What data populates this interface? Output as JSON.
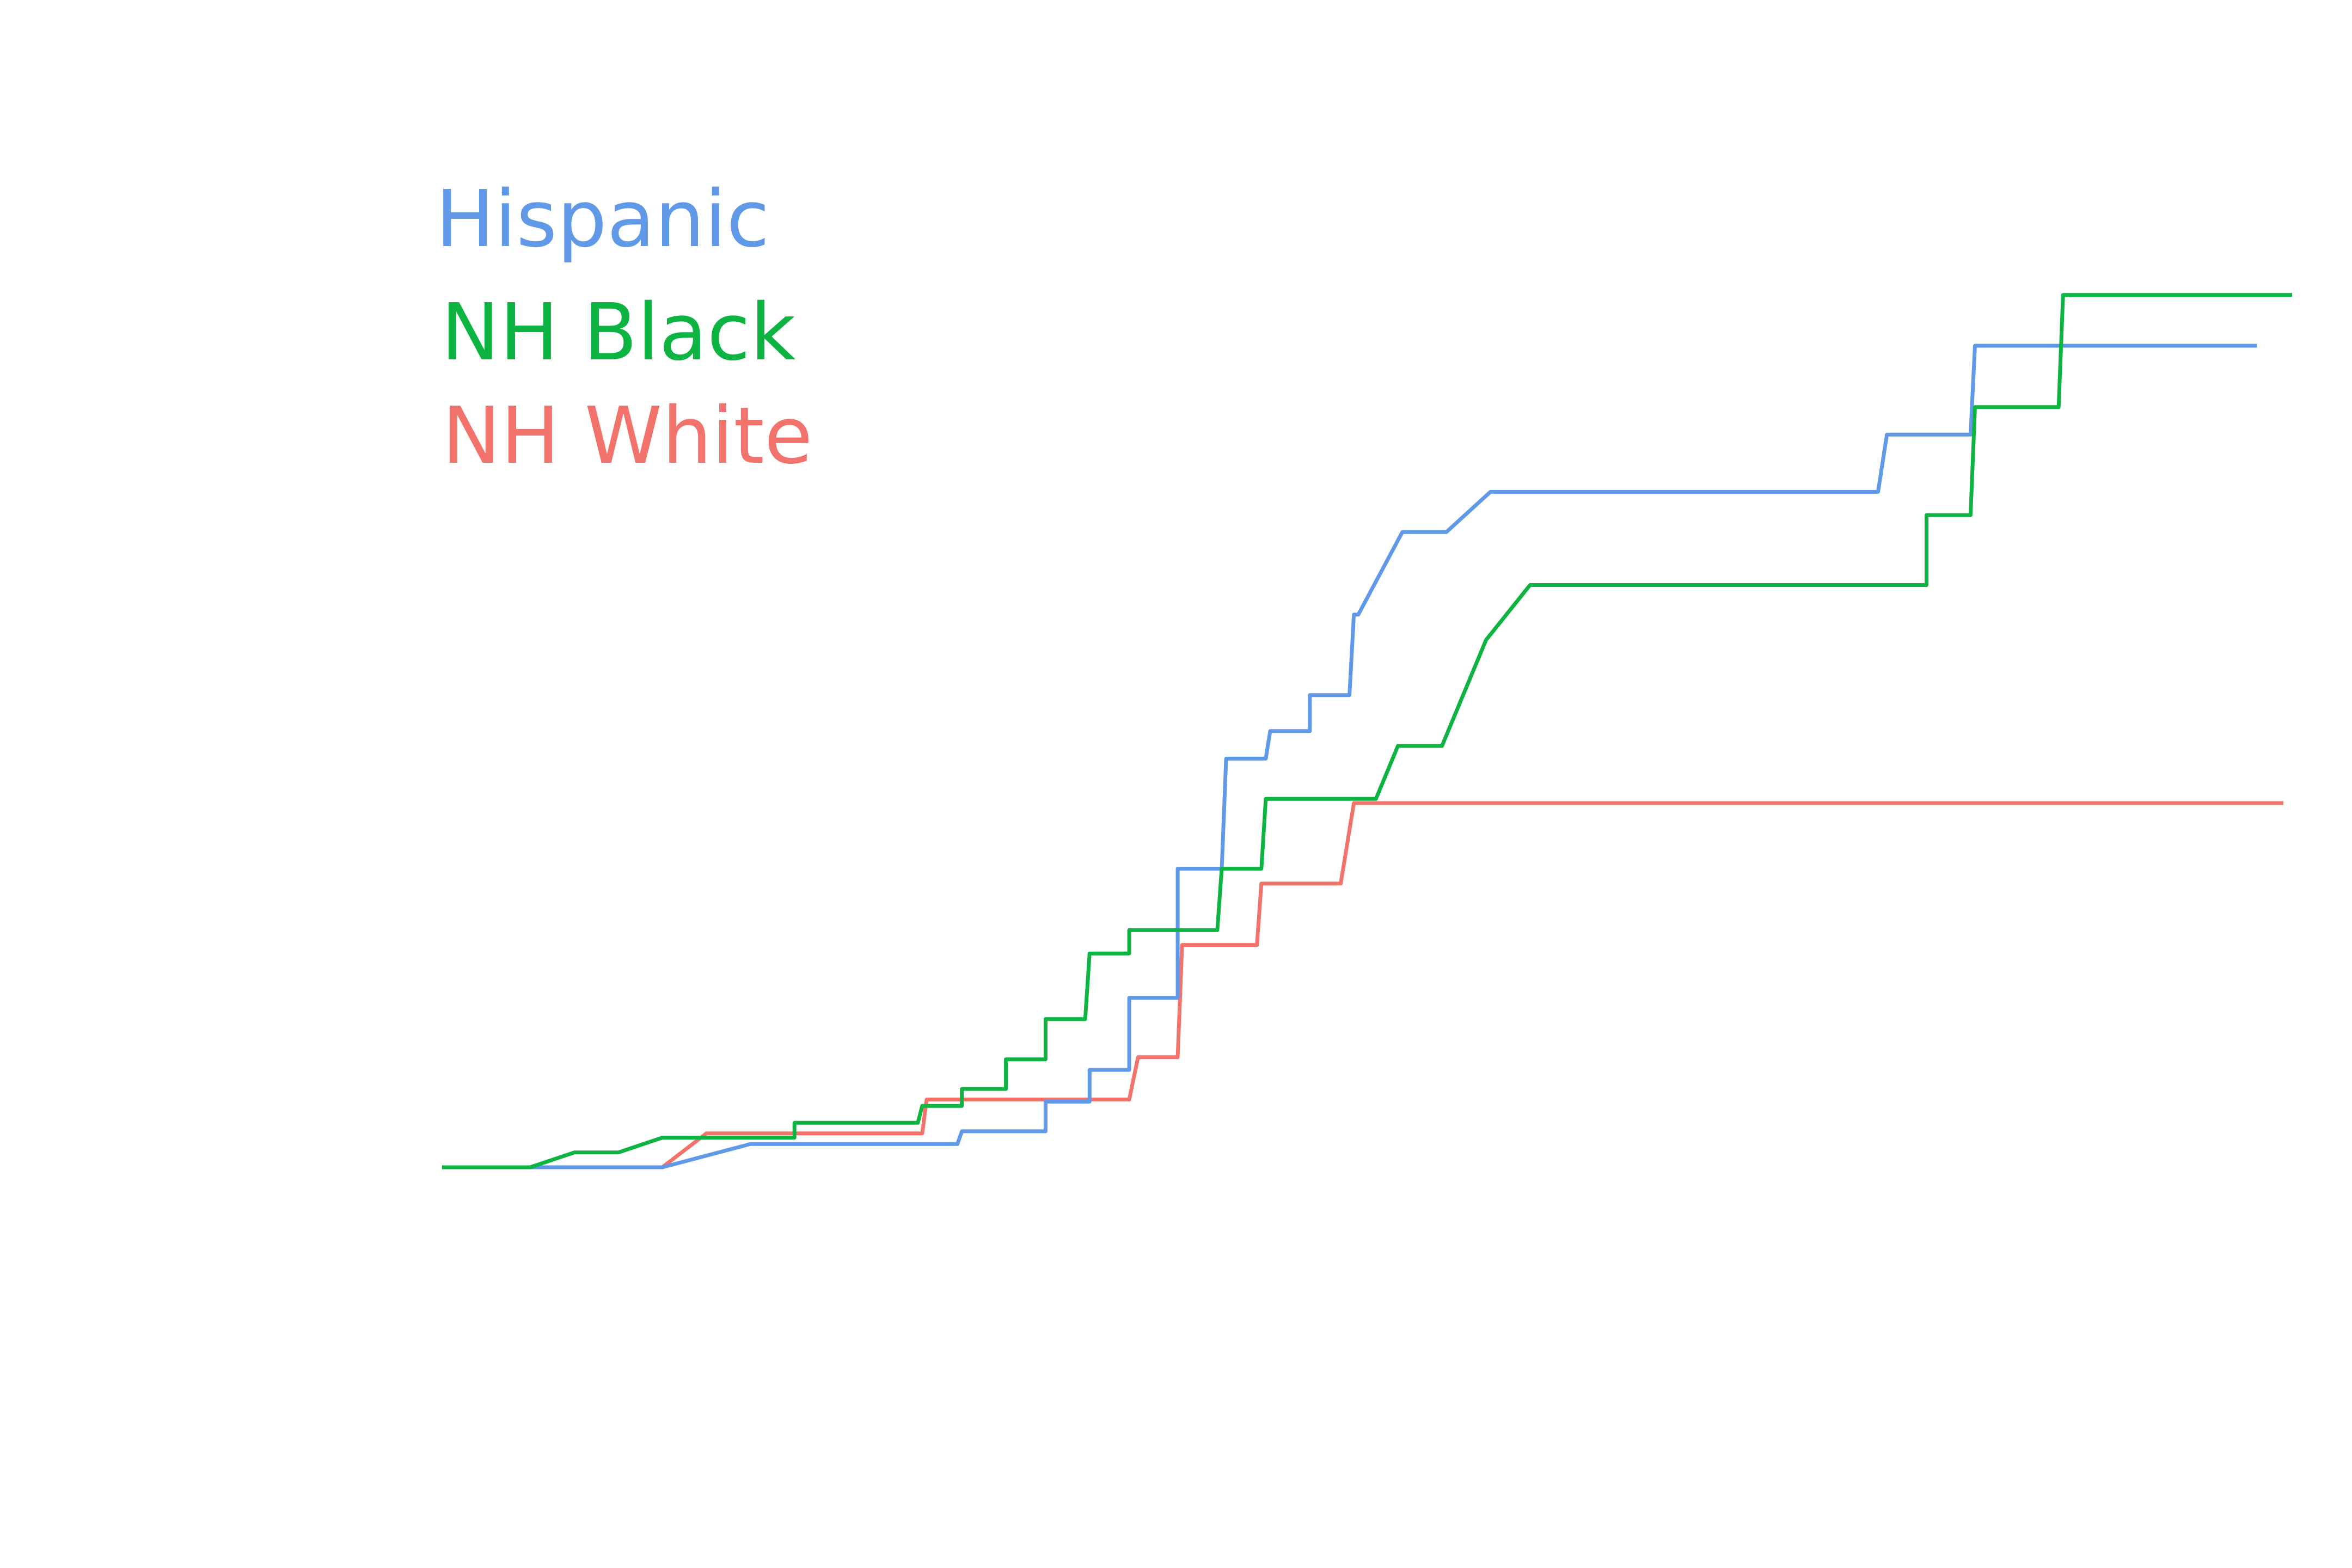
{
  "chart_data": {
    "type": "line",
    "title": "",
    "xlabel": "",
    "ylabel": "",
    "xlim": [
      0,
      42
    ],
    "ylim": [
      0,
      20.3
    ],
    "grid": false,
    "legend_position": "top-left",
    "series": [
      {
        "name": "Hispanic",
        "color": "#6199E9",
        "points": [
          [
            0,
            0
          ],
          [
            5,
            0
          ],
          [
            7,
            0.55
          ],
          [
            11.7,
            0.55
          ],
          [
            11.8,
            0.85
          ],
          [
            13.7,
            0.85
          ],
          [
            13.7,
            1.55
          ],
          [
            14.7,
            1.55
          ],
          [
            14.7,
            2.3
          ],
          [
            15.6,
            2.3
          ],
          [
            15.6,
            4.0
          ],
          [
            16.7,
            4.0
          ],
          [
            16.7,
            7.05
          ],
          [
            17.7,
            7.05
          ],
          [
            17.8,
            9.65
          ],
          [
            18.7,
            9.65
          ],
          [
            18.8,
            10.3
          ],
          [
            19.7,
            10.3
          ],
          [
            19.7,
            11.15
          ],
          [
            20.6,
            11.15
          ],
          [
            20.7,
            13.05
          ],
          [
            20.8,
            13.05
          ],
          [
            21.8,
            15.0
          ],
          [
            22.8,
            15.0
          ],
          [
            23.8,
            15.95
          ],
          [
            32.6,
            15.95
          ],
          [
            32.8,
            17.3
          ],
          [
            34.7,
            17.3
          ],
          [
            34.8,
            19.4
          ],
          [
            41.2,
            19.4
          ]
        ]
      },
      {
        "name": "NH Black",
        "color": "#0DB441",
        "points": [
          [
            0,
            0
          ],
          [
            2,
            0
          ],
          [
            3,
            0.35
          ],
          [
            4,
            0.35
          ],
          [
            5,
            0.7
          ],
          [
            8,
            0.7
          ],
          [
            8,
            1.05
          ],
          [
            10.8,
            1.05
          ],
          [
            10.9,
            1.45
          ],
          [
            11.8,
            1.45
          ],
          [
            11.8,
            1.85
          ],
          [
            12.8,
            1.85
          ],
          [
            12.8,
            2.55
          ],
          [
            13.7,
            2.55
          ],
          [
            13.7,
            3.5
          ],
          [
            14.6,
            3.5
          ],
          [
            14.7,
            5.05
          ],
          [
            15.6,
            5.05
          ],
          [
            15.6,
            5.6
          ],
          [
            17.6,
            5.6
          ],
          [
            17.7,
            7.05
          ],
          [
            18.6,
            7.05
          ],
          [
            18.7,
            8.7
          ],
          [
            21.2,
            8.7
          ],
          [
            21.7,
            9.95
          ],
          [
            22.7,
            9.95
          ],
          [
            23.7,
            12.45
          ],
          [
            24.7,
            13.75
          ],
          [
            33.7,
            13.75
          ],
          [
            33.7,
            15.4
          ],
          [
            34.7,
            15.4
          ],
          [
            34.8,
            17.95
          ],
          [
            36.7,
            17.95
          ],
          [
            36.8,
            20.6
          ],
          [
            42,
            20.6
          ]
        ]
      },
      {
        "name": "NH White",
        "color": "#F2736B",
        "points": [
          [
            0,
            0
          ],
          [
            5,
            0
          ],
          [
            6,
            0.8
          ],
          [
            10.9,
            0.8
          ],
          [
            11,
            1.6
          ],
          [
            15.6,
            1.6
          ],
          [
            15.8,
            2.6
          ],
          [
            16.7,
            2.6
          ],
          [
            16.8,
            5.25
          ],
          [
            18.5,
            5.25
          ],
          [
            18.6,
            6.7
          ],
          [
            20.4,
            6.7
          ],
          [
            20.7,
            8.6
          ],
          [
            41.8,
            8.6
          ]
        ]
      }
    ]
  }
}
